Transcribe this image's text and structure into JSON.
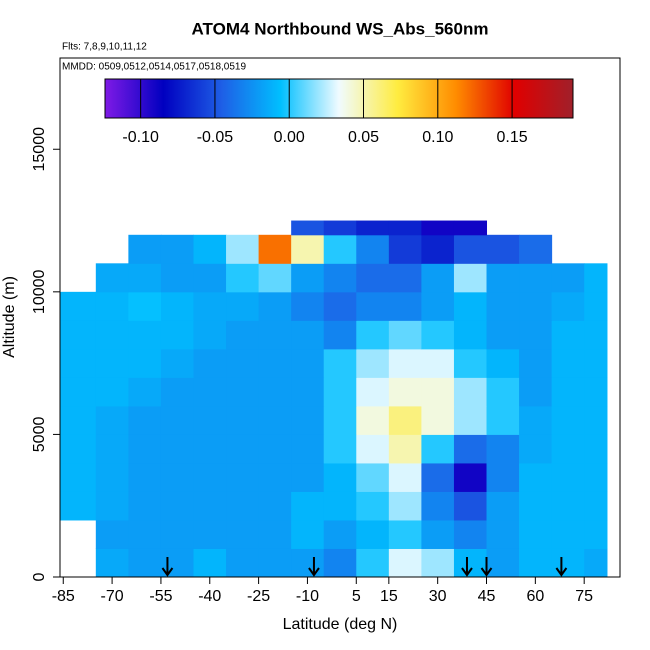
{
  "chart_data": {
    "type": "heatmap",
    "title": "ATOM4 Northbound WS_Abs_560nm",
    "subtitle": "Flts: 7,8,9,10,11,12",
    "annotation": "MMDD: 0509,0512,0514,0517,0518,0519",
    "x_label": "Latitude (deg N)",
    "y_label": "Altitude (m)",
    "xlim": [
      -86,
      86
    ],
    "xticks": [
      -85,
      -70,
      -55,
      -40,
      -25,
      -10,
      5,
      15,
      30,
      45,
      60,
      75
    ],
    "ylim": [
      0,
      18200
    ],
    "yticks": [
      0,
      5000,
      10000,
      15000
    ],
    "x_edges": [
      -86,
      -75,
      -65,
      -55,
      -45,
      -35,
      -25,
      -15,
      -5,
      5,
      15,
      25,
      35,
      45,
      55,
      65,
      75,
      82
    ],
    "y_edges": [
      0,
      1000,
      2000,
      3000,
      4000,
      5000,
      6000,
      7000,
      8000,
      9000,
      10000,
      11000,
      12000,
      12500
    ],
    "z": [
      [
        null,
        -0.015,
        -0.02,
        -0.02,
        -0.01,
        -0.02,
        -0.02,
        -0.02,
        -0.03,
        0.0,
        0.03,
        0.02,
        -0.01,
        -0.02,
        -0.01,
        -0.01,
        -0.015
      ],
      [
        null,
        -0.02,
        -0.02,
        -0.02,
        -0.02,
        -0.02,
        -0.02,
        -0.01,
        -0.02,
        -0.01,
        0.0,
        -0.02,
        -0.03,
        -0.02,
        -0.01,
        -0.01,
        -0.01
      ],
      [
        -0.01,
        -0.015,
        -0.02,
        -0.02,
        -0.02,
        -0.02,
        -0.02,
        -0.01,
        -0.01,
        0.0,
        0.02,
        -0.03,
        -0.05,
        -0.02,
        -0.01,
        -0.01,
        -0.01
      ],
      [
        -0.01,
        -0.015,
        -0.02,
        -0.02,
        -0.02,
        -0.02,
        -0.02,
        -0.02,
        -0.01,
        0.01,
        0.03,
        -0.04,
        -0.09,
        -0.03,
        -0.01,
        -0.01,
        -0.01
      ],
      [
        -0.01,
        -0.015,
        -0.02,
        -0.02,
        -0.02,
        -0.02,
        -0.02,
        -0.02,
        0.0,
        0.03,
        0.05,
        0.0,
        -0.04,
        -0.03,
        -0.015,
        -0.01,
        -0.01
      ],
      [
        -0.01,
        -0.015,
        -0.02,
        -0.02,
        -0.02,
        -0.02,
        -0.02,
        -0.02,
        0.0,
        0.04,
        0.06,
        0.04,
        0.02,
        0.0,
        -0.015,
        -0.01,
        -0.01
      ],
      [
        -0.01,
        -0.01,
        -0.015,
        -0.02,
        -0.02,
        -0.02,
        -0.02,
        -0.02,
        0.0,
        0.03,
        0.04,
        0.04,
        0.02,
        0.0,
        -0.02,
        -0.01,
        -0.01
      ],
      [
        -0.01,
        -0.01,
        -0.01,
        -0.015,
        -0.02,
        -0.02,
        -0.02,
        -0.02,
        0.0,
        0.02,
        0.03,
        0.03,
        0.0,
        -0.01,
        -0.02,
        -0.01,
        -0.01
      ],
      [
        -0.01,
        -0.01,
        -0.01,
        -0.01,
        -0.015,
        -0.02,
        -0.02,
        -0.02,
        -0.03,
        0.0,
        0.01,
        0.0,
        -0.01,
        -0.02,
        -0.02,
        -0.01,
        -0.01
      ],
      [
        -0.01,
        -0.01,
        -0.005,
        -0.01,
        -0.015,
        -0.015,
        -0.02,
        -0.03,
        -0.04,
        -0.03,
        -0.03,
        -0.02,
        -0.01,
        -0.02,
        -0.02,
        -0.015,
        -0.01
      ],
      [
        null,
        -0.015,
        -0.015,
        -0.02,
        -0.02,
        0.0,
        0.01,
        -0.02,
        -0.03,
        -0.04,
        -0.04,
        -0.02,
        0.02,
        -0.02,
        -0.02,
        -0.02,
        -0.01
      ],
      [
        null,
        null,
        -0.02,
        -0.02,
        -0.01,
        0.02,
        0.12,
        0.05,
        0.0,
        -0.03,
        -0.06,
        -0.07,
        -0.05,
        -0.05,
        -0.04,
        null,
        null
      ],
      [
        null,
        null,
        null,
        null,
        null,
        null,
        null,
        -0.05,
        -0.06,
        -0.07,
        -0.07,
        -0.09,
        -0.09,
        null,
        null,
        null,
        null
      ]
    ],
    "colorbar_lim": [
      -0.124,
      0.191
    ],
    "colorbar_ticks": [
      {
        "value": -0.1,
        "label": "-0.10"
      },
      {
        "value": -0.05,
        "label": "-0.05"
      },
      {
        "value": 0,
        "label": "0.00"
      },
      {
        "value": 0.05,
        "label": "0.05"
      },
      {
        "value": 0.1,
        "label": "0.10"
      },
      {
        "value": 0.15,
        "label": "0.15"
      }
    ],
    "colormap": [
      "#7f1ae6",
      "#0000c0",
      "#1e5fe6",
      "#00bfff",
      "#f0fbff",
      "#ffec40",
      "#ff8c00",
      "#e00000",
      "#a0202a"
    ],
    "flight_markers_lat": [
      -53,
      -8,
      39,
      45,
      68
    ]
  }
}
